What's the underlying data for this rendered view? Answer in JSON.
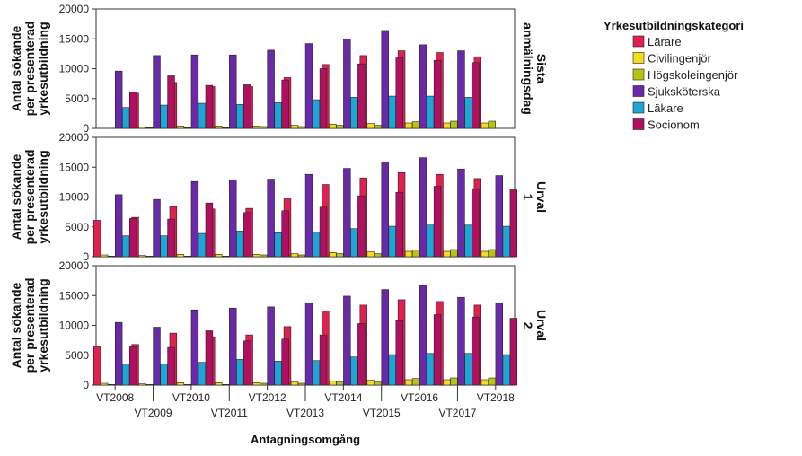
{
  "chart_data": {
    "type": "bar",
    "xlabel": "Antagningsomgång",
    "ylabel": "Antal sökande per presenterad yrkesutbildning",
    "ylim": [
      0,
      20000
    ],
    "yticks": [
      0,
      5000,
      10000,
      15000,
      20000
    ],
    "legend": {
      "title": "Yrkesutbildningskategori",
      "position": "right"
    },
    "categories": [
      "VT2008",
      "VT2009",
      "VT2010",
      "VT2011",
      "VT2012",
      "VT2013",
      "VT2014",
      "VT2015",
      "VT2016",
      "VT2017",
      "VT2018"
    ],
    "series": [
      {
        "name": "Lärare",
        "color": "#e0204f"
      },
      {
        "name": "Civilingenjör",
        "color": "#f5dc1e"
      },
      {
        "name": "Högskoleingenjör",
        "color": "#b8c414"
      },
      {
        "name": "Sjuksköterska",
        "color": "#6a2aa8"
      },
      {
        "name": "Läkare",
        "color": "#1ea6d6"
      },
      {
        "name": "Socionom",
        "color": "#b01060"
      }
    ],
    "panels": [
      {
        "label": "Sista anmälningsdag",
        "values": [
          [
            null,
            5900,
            7700,
            7000,
            7000,
            8500,
            10700,
            12200,
            13000,
            12700,
            12000
          ],
          [
            null,
            200,
            400,
            400,
            400,
            500,
            700,
            800,
            900,
            900,
            900
          ],
          [
            null,
            100,
            100,
            100,
            300,
            300,
            500,
            500,
            1100,
            1200,
            1200
          ],
          [
            9600,
            12200,
            12300,
            12300,
            13100,
            14200,
            15000,
            16400,
            14000,
            13000,
            null
          ],
          [
            3500,
            3900,
            4200,
            4000,
            4300,
            4800,
            5200,
            5400,
            5400,
            5200,
            null
          ],
          [
            6100,
            8800,
            7200,
            7300,
            8100,
            10000,
            10800,
            11800,
            11400,
            11000,
            null
          ]
        ]
      },
      {
        "label": "Urval 1",
        "values": [
          [
            6100,
            6600,
            8400,
            8000,
            8100,
            9700,
            12100,
            13200,
            14100,
            13800,
            13100
          ],
          [
            300,
            200,
            400,
            400,
            400,
            500,
            700,
            800,
            900,
            900,
            900
          ],
          [
            100,
            100,
            100,
            100,
            300,
            300,
            500,
            500,
            1100,
            1200,
            1200
          ],
          [
            10400,
            9600,
            12600,
            12900,
            13000,
            13800,
            14800,
            15900,
            16600,
            14700,
            13600
          ],
          [
            3500,
            3500,
            3900,
            4300,
            4000,
            4100,
            4700,
            5100,
            5300,
            5300,
            5100
          ],
          [
            6400,
            6300,
            9000,
            7400,
            7700,
            8300,
            10200,
            10800,
            11800,
            11400,
            11200
          ]
        ]
      },
      {
        "label": "Urval 2",
        "values": [
          [
            6400,
            6800,
            8700,
            8100,
            8400,
            9800,
            12400,
            13400,
            14300,
            14000,
            13400
          ],
          [
            300,
            200,
            400,
            400,
            400,
            500,
            700,
            800,
            900,
            900,
            900
          ],
          [
            100,
            100,
            100,
            100,
            300,
            300,
            500,
            500,
            1100,
            1200,
            1200
          ],
          [
            10500,
            9700,
            12600,
            12900,
            13100,
            13800,
            14900,
            16000,
            16700,
            14700,
            13700
          ],
          [
            3500,
            3500,
            3800,
            4300,
            4000,
            4100,
            4700,
            5100,
            5300,
            5300,
            5100
          ],
          [
            6400,
            6300,
            9100,
            7400,
            7700,
            8400,
            10300,
            10800,
            11800,
            11400,
            11200
          ]
        ]
      }
    ]
  }
}
